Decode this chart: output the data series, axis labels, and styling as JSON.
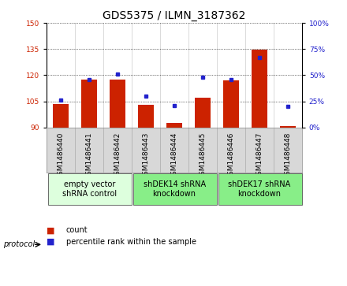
{
  "title": "GDS5375 / ILMN_3187362",
  "samples": [
    "GSM1486440",
    "GSM1486441",
    "GSM1486442",
    "GSM1486443",
    "GSM1486444",
    "GSM1486445",
    "GSM1486446",
    "GSM1486447",
    "GSM1486448"
  ],
  "count_values": [
    103.5,
    117.5,
    117.5,
    103.0,
    92.5,
    107.0,
    117.0,
    134.5,
    91.0
  ],
  "percentile_values": [
    26,
    46,
    51,
    30,
    21,
    48,
    46,
    67,
    20
  ],
  "ylim_left": [
    90,
    150
  ],
  "ylim_right": [
    0,
    100
  ],
  "yticks_left": [
    90,
    105,
    120,
    135,
    150
  ],
  "yticks_right": [
    0,
    25,
    50,
    75,
    100
  ],
  "bar_color": "#cc2200",
  "scatter_color": "#2222cc",
  "bar_bottom": 90,
  "groups": [
    {
      "label": "empty vector\nshRNA control",
      "start": 0,
      "end": 3,
      "color": "#ddffdd"
    },
    {
      "label": "shDEK14 shRNA\nknockdown",
      "start": 3,
      "end": 6,
      "color": "#88ee88"
    },
    {
      "label": "shDEK17 shRNA\nknockdown",
      "start": 6,
      "end": 9,
      "color": "#88ee88"
    }
  ],
  "legend_count_label": "count",
  "legend_pct_label": "percentile rank within the sample",
  "protocol_label": "protocol",
  "xtick_bg_color": "#d8d8d8",
  "plot_bg_color": "#ffffff",
  "grid_color": "#000000",
  "title_fontsize": 10,
  "tick_fontsize": 6.5,
  "group_fontsize": 7,
  "legend_fontsize": 7
}
